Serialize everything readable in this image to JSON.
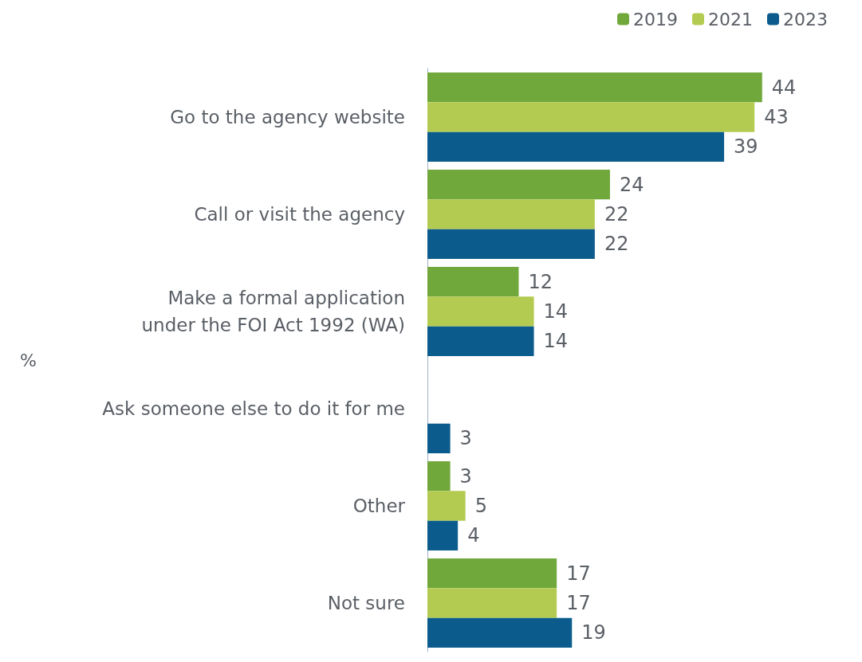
{
  "chart_data": {
    "type": "bar",
    "orientation": "horizontal",
    "ylabel": "%",
    "categories": [
      "Go to the agency website",
      "Call or visit the agency",
      "Make a formal application\nunder the FOI Act 1992 (WA)",
      "Ask someone else to do it for me",
      "Other",
      "Not sure"
    ],
    "series": [
      {
        "name": "2019",
        "color": "#70a83b",
        "values": [
          44,
          24,
          12,
          null,
          3,
          17
        ]
      },
      {
        "name": "2021",
        "color": "#b4cb51",
        "values": [
          43,
          22,
          14,
          null,
          5,
          17
        ]
      },
      {
        "name": "2023",
        "color": "#0b5c8c",
        "values": [
          39,
          22,
          14,
          3,
          4,
          19
        ]
      }
    ],
    "data_labels": true,
    "legend": "top right"
  }
}
